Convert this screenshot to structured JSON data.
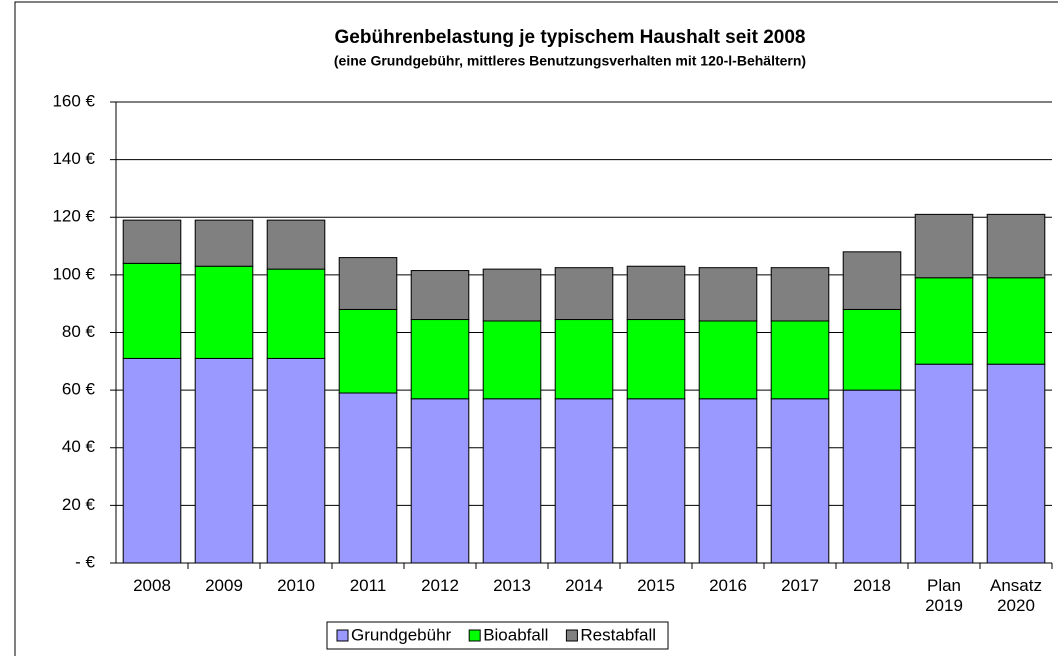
{
  "chart_data": {
    "type": "stacked_bar",
    "title": "Gebührenbelastung je typischem Haushalt seit 2008",
    "subtitle": "(eine Grundgebühr, mittleres Benutzungsverhalten mit 120-l-Behältern)",
    "categories": [
      "2008",
      "2009",
      "2010",
      "2011",
      "2012",
      "2013",
      "2014",
      "2015",
      "2016",
      "2017",
      "2018",
      "Plan 2019",
      "Ansatz 2020"
    ],
    "series": [
      {
        "name": "Grundgebühr",
        "color": "#9999ff",
        "values": [
          71,
          71,
          71,
          59,
          57,
          57,
          57,
          57,
          57,
          57,
          60,
          69,
          69
        ]
      },
      {
        "name": "Bioabfall",
        "color": "#00ff00",
        "values": [
          33,
          32,
          31,
          29,
          27.5,
          27,
          27.5,
          27.5,
          27,
          27,
          28,
          30,
          30
        ]
      },
      {
        "name": "Restabfall",
        "color": "#808080",
        "values": [
          15,
          16,
          17,
          18,
          17,
          18,
          18,
          18.5,
          18.5,
          18.5,
          20,
          22,
          22
        ]
      }
    ],
    "ylim": [
      0,
      160
    ],
    "yticks": [
      {
        "value": 0,
        "label": "- €"
      },
      {
        "value": 20,
        "label": "20 €"
      },
      {
        "value": 40,
        "label": "40 €"
      },
      {
        "value": 60,
        "label": "60 €"
      },
      {
        "value": 80,
        "label": "80 €"
      },
      {
        "value": 100,
        "label": "100 €"
      },
      {
        "value": 120,
        "label": "120 €"
      },
      {
        "value": 140,
        "label": "140 €"
      },
      {
        "value": 160,
        "label": "160 €"
      }
    ],
    "grid": true,
    "legend": "bottom"
  }
}
